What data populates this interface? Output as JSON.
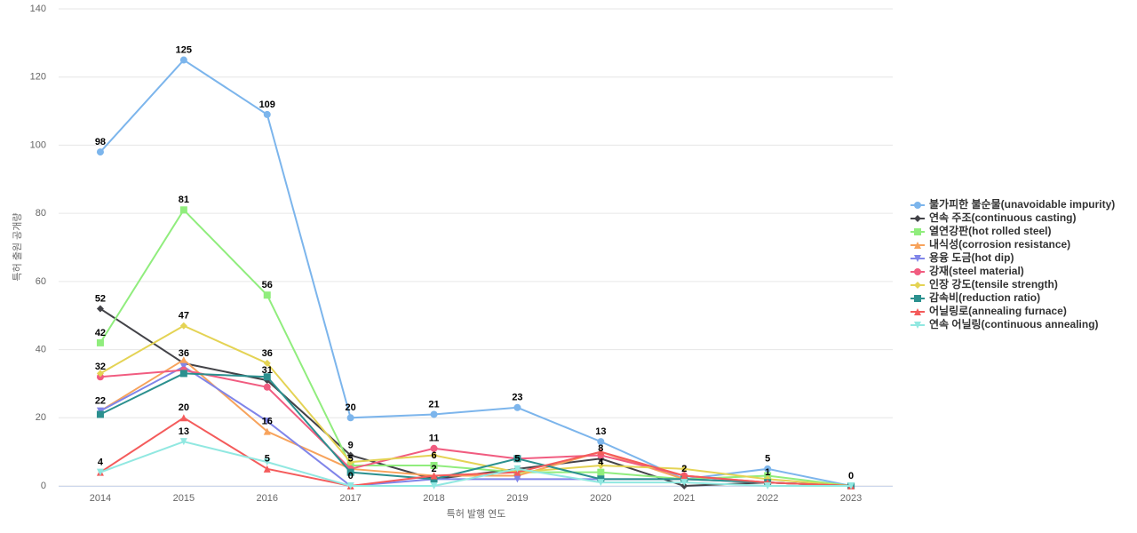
{
  "chart_data": {
    "type": "line",
    "y_label": "특허 출원 공개량",
    "x_label": "특허 발행 연도",
    "categories": [
      "2014",
      "2015",
      "2016",
      "2017",
      "2018",
      "2019",
      "2020",
      "2021",
      "2022",
      "2023"
    ],
    "ylim": [
      0,
      140
    ],
    "yticks": [
      0,
      20,
      40,
      60,
      80,
      100,
      120,
      140
    ],
    "grid": true,
    "legend_position": "right",
    "series": [
      {
        "name": "불가피한 불순물(unavoidable impurity)",
        "color": "#7cb5ec",
        "marker": "circle",
        "values": [
          98,
          125,
          109,
          20,
          21,
          23,
          13,
          2,
          5,
          0
        ]
      },
      {
        "name": "연속 주조(continuous casting)",
        "color": "#434348",
        "marker": "diamond",
        "values": [
          52,
          36,
          31,
          9,
          2,
          5,
          8,
          0,
          1,
          0
        ]
      },
      {
        "name": "열연강판(hot rolled steel)",
        "color": "#90ed7d",
        "marker": "square",
        "values": [
          42,
          81,
          56,
          6,
          6,
          4,
          4,
          2,
          3,
          0
        ]
      },
      {
        "name": "내식성(corrosion resistance)",
        "color": "#f7a35c",
        "marker": "triangle",
        "values": [
          22,
          37,
          16,
          5,
          3,
          3,
          10,
          2,
          1,
          0
        ]
      },
      {
        "name": "용융 도금(hot dip)",
        "color": "#8085e9",
        "marker": "triangle-down",
        "values": [
          22,
          35,
          19,
          0,
          2,
          2,
          2,
          2,
          1,
          0
        ]
      },
      {
        "name": "강재(steel material)",
        "color": "#f15c80",
        "marker": "circle",
        "values": [
          32,
          34,
          29,
          5,
          11,
          8,
          9,
          3,
          1,
          0
        ]
      },
      {
        "name": "인장 강도(tensile strength)",
        "color": "#e4d354",
        "marker": "diamond",
        "values": [
          33,
          47,
          36,
          7,
          9,
          4,
          6,
          5,
          2,
          0
        ]
      },
      {
        "name": "감속비(reduction ratio)",
        "color": "#2b908f",
        "marker": "square",
        "values": [
          21,
          33,
          32,
          4,
          2,
          8,
          2,
          2,
          1,
          0
        ]
      },
      {
        "name": "어닐링로(annealing furnace)",
        "color": "#f45b5b",
        "marker": "triangle",
        "values": [
          4,
          20,
          5,
          0,
          3,
          4,
          10,
          3,
          1,
          0
        ]
      },
      {
        "name": "연속 어닐링(continuous annealing)",
        "color": "#91e8e1",
        "marker": "triangle-down",
        "values": [
          4,
          13,
          7,
          0,
          0,
          5,
          1,
          1,
          0,
          0
        ]
      }
    ]
  }
}
